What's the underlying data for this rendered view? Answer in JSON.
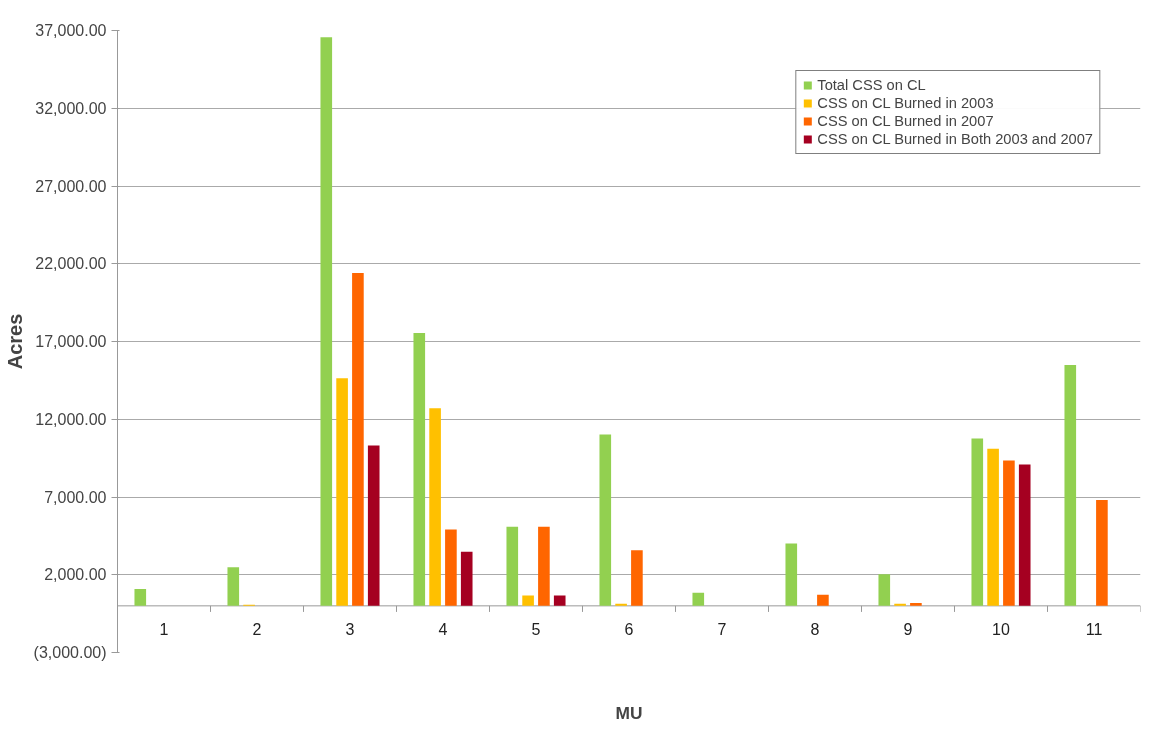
{
  "chart_data": {
    "type": "bar",
    "xlabel": "MU",
    "ylabel": "Acres",
    "categories": [
      "1",
      "2",
      "3",
      "4",
      "5",
      "6",
      "7",
      "8",
      "9",
      "10",
      "11"
    ],
    "series": [
      {
        "name": "Total CSS on CL",
        "color": "#92d050",
        "values": [
          1085,
          2490,
          36560,
          17540,
          5080,
          11020,
          850,
          4010,
          2030,
          10770,
          15490
        ]
      },
      {
        "name": "CSS on CL Burned in 2003",
        "color": "#ffc000",
        "values": [
          null,
          75,
          14630,
          12700,
          660,
          140,
          null,
          null,
          140,
          10110,
          null
        ]
      },
      {
        "name": "CSS on CL Burned in 2007",
        "color": "#ff6600",
        "values": [
          null,
          null,
          21410,
          4910,
          5080,
          3570,
          null,
          710,
          190,
          9340,
          6810
        ]
      },
      {
        "name": "CSS on CL Burned in Both 2003 and 2007",
        "color": "#a50021",
        "values": [
          null,
          null,
          10310,
          3480,
          660,
          null,
          null,
          null,
          null,
          9090,
          null
        ]
      }
    ],
    "ylim": [
      -3000,
      37000
    ],
    "yticks": [
      {
        "value": -3000,
        "label": "(3,000.00)"
      },
      {
        "value": 2000,
        "label": "2,000.00"
      },
      {
        "value": 7000,
        "label": "7,000.00"
      },
      {
        "value": 12000,
        "label": "12,000.00"
      },
      {
        "value": 17000,
        "label": "17,000.00"
      },
      {
        "value": 22000,
        "label": "22,000.00"
      },
      {
        "value": 27000,
        "label": "27,000.00"
      },
      {
        "value": 32000,
        "label": "32,000.00"
      },
      {
        "value": 37000,
        "label": "37,000.00"
      }
    ],
    "grid": "y",
    "legend": "top right"
  }
}
